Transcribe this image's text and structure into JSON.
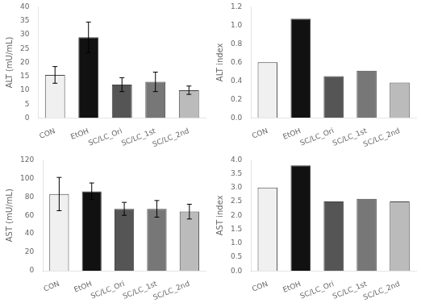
{
  "chart_data": [
    {
      "type": "bar",
      "categories": [
        "CON",
        "EtOH",
        "SC/LC_Ori",
        "SC/LC_1st",
        "SC/LC_2nd"
      ],
      "values": [
        15.5,
        29.0,
        12.0,
        13.0,
        10.0
      ],
      "errors": [
        3.0,
        5.5,
        2.5,
        3.5,
        1.5
      ],
      "colors": [
        "#f0f0f0",
        "#111111",
        "#555555",
        "#777777",
        "#bbbbbb"
      ],
      "ylabel": "ALT (mU/mL)",
      "ylim": [
        0,
        40
      ],
      "yticks": [
        0,
        5,
        10,
        15,
        20,
        25,
        30,
        35,
        40
      ],
      "grid": false
    },
    {
      "type": "bar",
      "categories": [
        "CON",
        "EtOH",
        "SC/LC_Ori",
        "SC/LC_1st",
        "SC/LC_2nd"
      ],
      "values": [
        0.6,
        1.07,
        0.45,
        0.51,
        0.38
      ],
      "colors": [
        "#f0f0f0",
        "#111111",
        "#555555",
        "#777777",
        "#bbbbbb"
      ],
      "ylabel": "ALT index",
      "ylim": [
        0,
        1.2
      ],
      "yticks": [
        {
          "value": 0,
          "label": "0.0"
        },
        0.2,
        0.4,
        0.6,
        0.8,
        {
          "value": 1,
          "label": "1.0"
        },
        1.2
      ],
      "grid": false
    },
    {
      "type": "bar",
      "categories": [
        "CON",
        "EtOH",
        "SC/LC_Ori",
        "SC/LC_1st",
        "SC/LC_2nd"
      ],
      "values": [
        83.0,
        86.0,
        67.0,
        67.0,
        64.0
      ],
      "errors": [
        18.0,
        9.0,
        7.0,
        9.0,
        8.0
      ],
      "colors": [
        "#f0f0f0",
        "#111111",
        "#555555",
        "#777777",
        "#bbbbbb"
      ],
      "ylabel": "AST (mU/mL)",
      "ylim": [
        0,
        120
      ],
      "yticks": [
        0,
        20,
        40,
        60,
        80,
        100,
        120
      ],
      "grid": false
    },
    {
      "type": "bar",
      "categories": [
        "CON",
        "EtOH",
        "SC/LC_Ori",
        "SC/LC_1st",
        "SC/LC_2nd"
      ],
      "values": [
        3.0,
        3.8,
        2.5,
        2.6,
        2.5
      ],
      "colors": [
        "#f0f0f0",
        "#111111",
        "#555555",
        "#777777",
        "#bbbbbb"
      ],
      "ylabel": "AST index",
      "ylim": [
        0,
        4.0
      ],
      "yticks": [
        {
          "value": 0,
          "label": "0.0"
        },
        0.5,
        {
          "value": 1,
          "label": "1.0"
        },
        1.5,
        {
          "value": 2,
          "label": "2.0"
        },
        2.5,
        {
          "value": 3,
          "label": "3.0"
        },
        3.5,
        {
          "value": 4,
          "label": "4.0"
        }
      ],
      "grid": false
    }
  ]
}
